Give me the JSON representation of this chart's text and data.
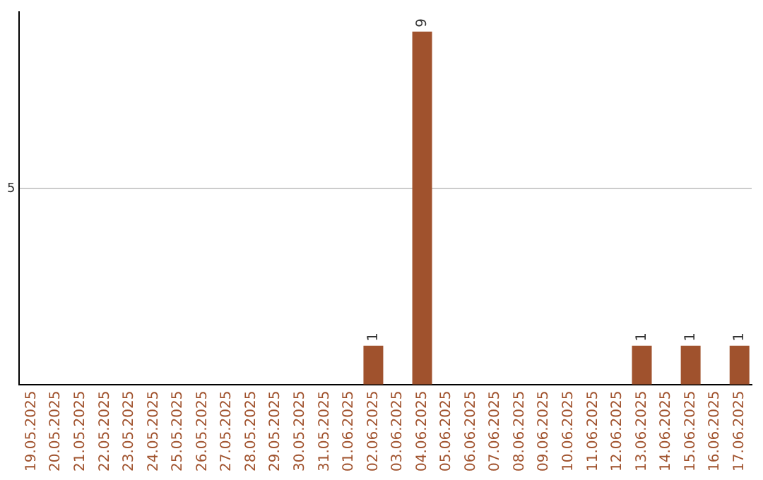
{
  "chart_data": {
    "type": "bar",
    "categories": [
      "19.05.2025",
      "20.05.2025",
      "21.05.2025",
      "22.05.2025",
      "23.05.2025",
      "24.05.2025",
      "25.05.2025",
      "26.05.2025",
      "27.05.2025",
      "28.05.2025",
      "29.05.2025",
      "30.05.2025",
      "31.05.2025",
      "01.06.2025",
      "02.06.2025",
      "03.06.2025",
      "04.06.2025",
      "05.06.2025",
      "06.06.2025",
      "07.06.2025",
      "08.06.2025",
      "09.06.2025",
      "10.06.2025",
      "11.06.2025",
      "12.06.2025",
      "13.06.2025",
      "14.06.2025",
      "15.06.2025",
      "16.06.2025",
      "17.06.2025"
    ],
    "values": [
      null,
      null,
      null,
      null,
      null,
      null,
      null,
      null,
      null,
      null,
      null,
      null,
      null,
      null,
      1,
      null,
      9,
      null,
      null,
      null,
      null,
      null,
      null,
      null,
      null,
      1,
      null,
      1,
      null,
      1
    ],
    "data_labels": true,
    "color": "#a0522d",
    "ylim": [
      0,
      9.5
    ],
    "yticks": [
      {
        "value": 0,
        "label": null
      },
      5
    ],
    "grid": "y",
    "legend": false
  }
}
